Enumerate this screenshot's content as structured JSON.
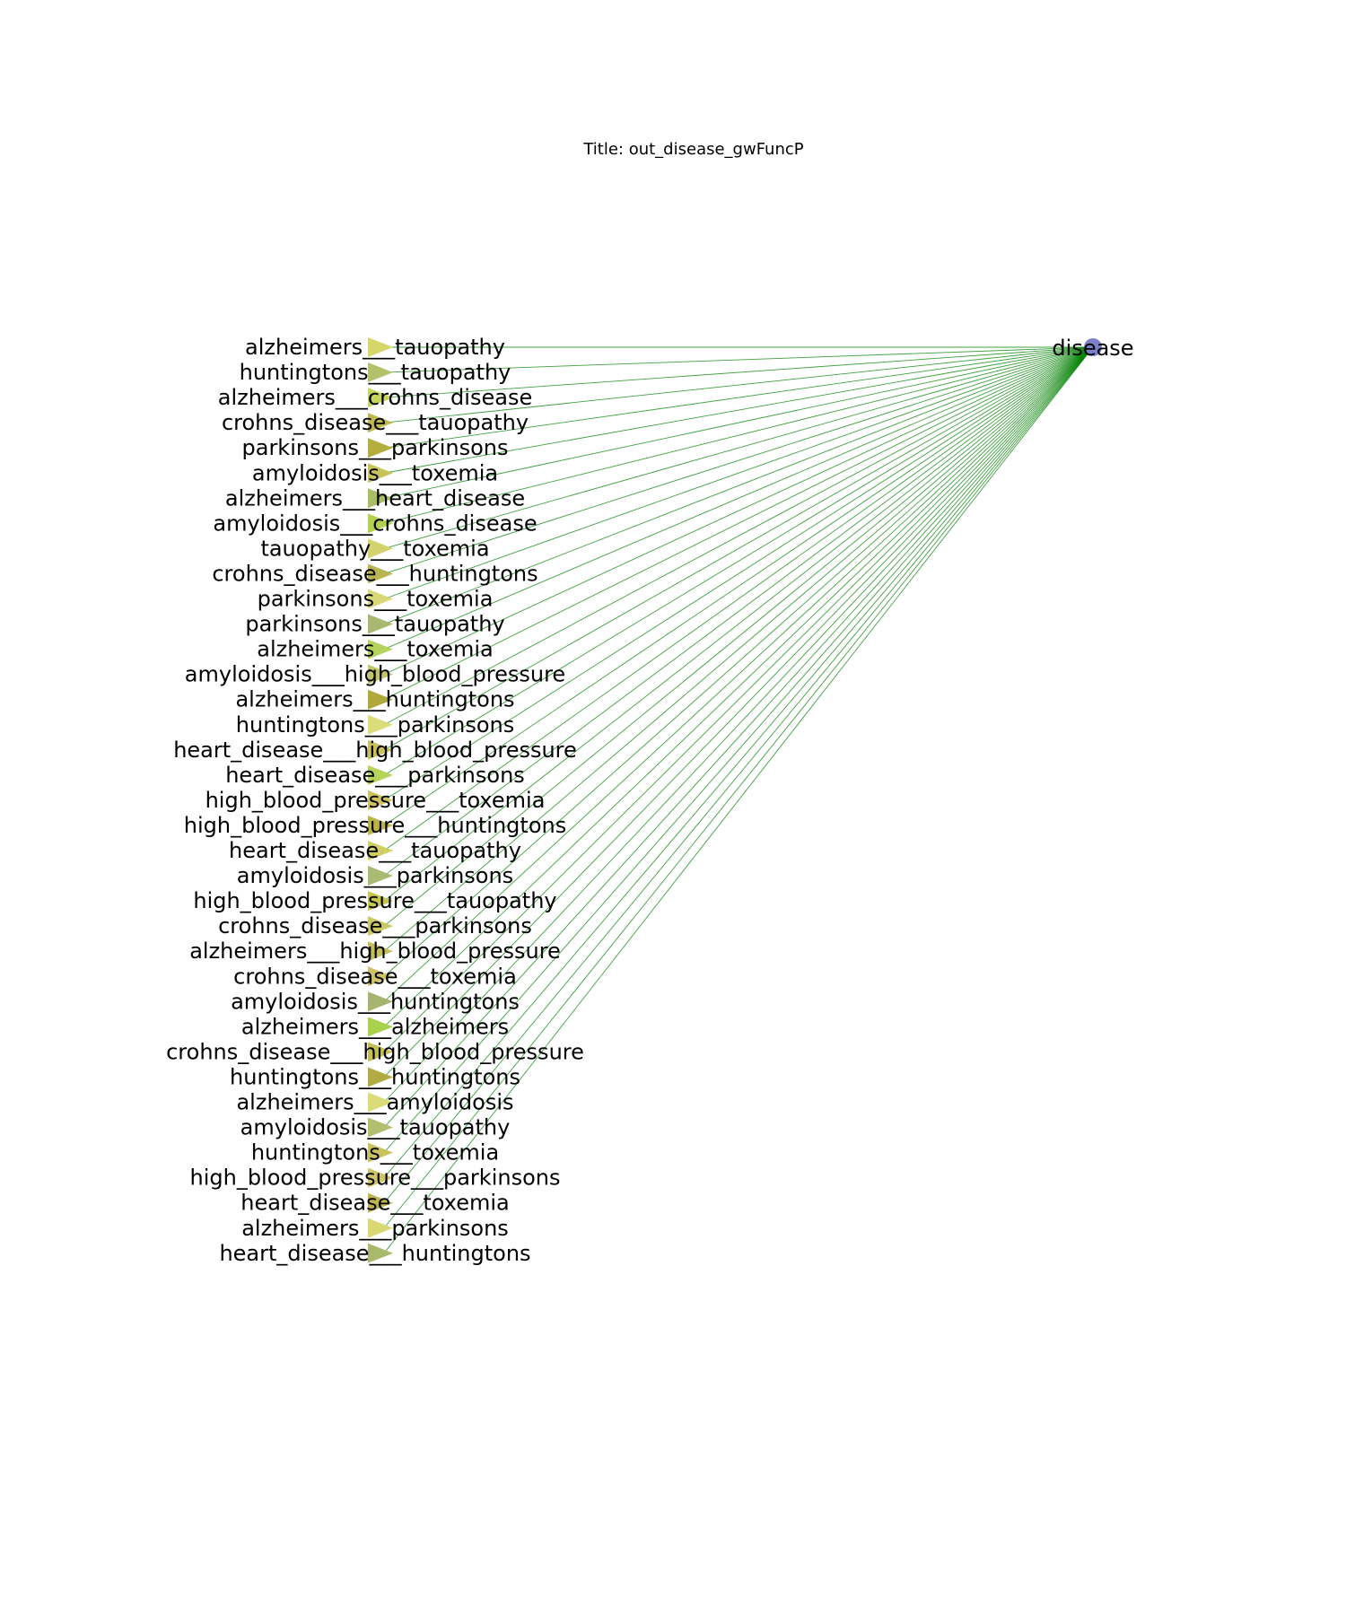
{
  "title": "Title: out_disease_gwFuncP",
  "target": {
    "label": "disease",
    "color": "#7b80c8"
  },
  "edge_color": "#008000",
  "sources": [
    {
      "label": "alzheimers___tauopathy",
      "color": "#d6d66a"
    },
    {
      "label": "huntingtons___tauopathy",
      "color": "#b3c16b"
    },
    {
      "label": "alzheimers___crohns_disease",
      "color": "#c6d65a"
    },
    {
      "label": "crohns_disease___tauopathy",
      "color": "#c0b94b"
    },
    {
      "label": "parkinsons___parkinsons",
      "color": "#b5ad3e"
    },
    {
      "label": "amyloidosis___toxemia",
      "color": "#c8c558"
    },
    {
      "label": "alzheimers___heart_disease",
      "color": "#a9bd66"
    },
    {
      "label": "amyloidosis___crohns_disease",
      "color": "#b3d14d"
    },
    {
      "label": "tauopathy___toxemia",
      "color": "#d3d36d"
    },
    {
      "label": "crohns_disease___huntingtons",
      "color": "#b9b652"
    },
    {
      "label": "parkinsons___toxemia",
      "color": "#d8d879"
    },
    {
      "label": "parkinsons___tauopathy",
      "color": "#a8b870"
    },
    {
      "label": "alzheimers___toxemia",
      "color": "#b5d35a"
    },
    {
      "label": "amyloidosis___high_blood_pressure",
      "color": "#c2c466"
    },
    {
      "label": "alzheimers___huntingtons",
      "color": "#b0a83d"
    },
    {
      "label": "huntingtons___parkinsons",
      "color": "#dcdc7a"
    },
    {
      "label": "heart_disease___high_blood_pressure",
      "color": "#c9c25c"
    },
    {
      "label": "heart_disease___parkinsons",
      "color": "#b8d458"
    },
    {
      "label": "high_blood_pressure___toxemia",
      "color": "#cfc25f"
    },
    {
      "label": "high_blood_pressure___huntingtons",
      "color": "#bcb447"
    },
    {
      "label": "heart_disease___tauopathy",
      "color": "#cfcf63"
    },
    {
      "label": "amyloidosis___parkinsons",
      "color": "#a9ba71"
    },
    {
      "label": "high_blood_pressure___tauopathy",
      "color": "#c6c64a"
    },
    {
      "label": "crohns_disease___parkinsons",
      "color": "#cdc866"
    },
    {
      "label": "alzheimers___high_blood_pressure",
      "color": "#c3c05a"
    },
    {
      "label": "crohns_disease___toxemia",
      "color": "#cfc36a"
    },
    {
      "label": "amyloidosis___huntingtons",
      "color": "#a5b56f"
    },
    {
      "label": "alzheimers___alzheimers",
      "color": "#a8d24a"
    },
    {
      "label": "crohns_disease___high_blood_pressure",
      "color": "#c4bf55"
    },
    {
      "label": "huntingtons___huntingtons",
      "color": "#b2ab42"
    },
    {
      "label": "alzheimers___amyloidosis",
      "color": "#dbdb78"
    },
    {
      "label": "amyloidosis___tauopathy",
      "color": "#b1bf6f"
    },
    {
      "label": "huntingtons___toxemia",
      "color": "#c8c35e"
    },
    {
      "label": "high_blood_pressure___parkinsons",
      "color": "#d1c56a"
    },
    {
      "label": "heart_disease___toxemia",
      "color": "#beb44c"
    },
    {
      "label": "alzheimers___parkinsons",
      "color": "#d9d974"
    },
    {
      "label": "heart_disease___huntingtons",
      "color": "#a9b96c"
    }
  ]
}
